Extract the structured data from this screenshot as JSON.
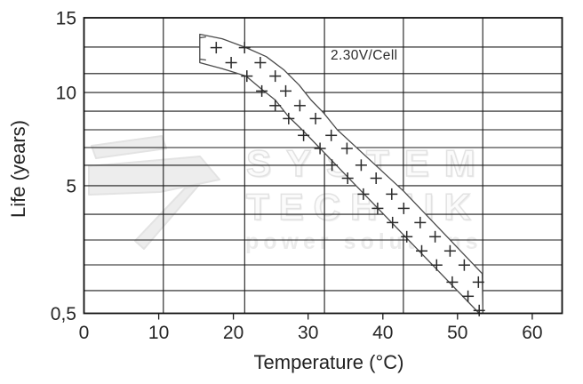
{
  "watermark": {
    "line1": "SYSTEM",
    "line2": "TECHNIK",
    "tagline": "power solutions",
    "color": "#ececec"
  },
  "annotation": {
    "label": "2.30V/Cell"
  },
  "colors": {
    "grid": "#1c1c1c",
    "border": "#111111",
    "band_stroke": "#4a4a4a",
    "band_fill": "#ffffff",
    "marker": "#2a2a2a",
    "text": "#262626"
  },
  "chart_data": {
    "type": "area",
    "subtype": "band-between-curves",
    "title": "",
    "xlabel": "Temperature (°C)",
    "ylabel": "Life (years)",
    "legend": "none",
    "grid": true,
    "x_range": [
      0,
      64
    ],
    "x_ticks": [
      {
        "label": "0",
        "value": 0
      },
      {
        "label": "10",
        "value": 10
      },
      {
        "label": "20",
        "value": 20
      },
      {
        "label": "30",
        "value": 30
      },
      {
        "label": "40",
        "value": 40
      },
      {
        "label": "50",
        "value": 50
      },
      {
        "label": "60",
        "value": 60
      }
    ],
    "x_gridline_pos": [
      0.0,
      0.166,
      0.336,
      0.503,
      0.668,
      0.834,
      1.0
    ],
    "y_scale": "quasi-log",
    "y_ticks": [
      {
        "label": "15",
        "value": 15,
        "pos": 0.0
      },
      {
        "label": "10",
        "value": 10,
        "pos": 0.253
      },
      {
        "label": "5",
        "value": 5,
        "pos": 0.568
      },
      {
        "label": "0,5",
        "value": 0.5,
        "pos": 1.0
      }
    ],
    "y_gridline_pos": [
      0.0,
      0.099,
      0.189,
      0.253,
      0.316,
      0.379,
      0.439,
      0.499,
      0.568,
      0.665,
      0.752,
      0.836,
      0.923,
      1.0
    ],
    "series": [
      {
        "name": "service-life-band-upper",
        "points": [
          [
            15.5,
            13.9
          ],
          [
            18.5,
            13.6
          ],
          [
            21.7,
            13.0
          ],
          [
            24.4,
            12.4
          ],
          [
            26.8,
            11.5
          ],
          [
            28.8,
            10.5
          ],
          [
            30.4,
            9.6
          ],
          [
            32.1,
            8.9
          ],
          [
            33.9,
            8.0
          ],
          [
            42.8,
            4.8
          ],
          [
            53.3,
            1.9
          ],
          [
            53.4,
            0.5
          ]
        ]
      },
      {
        "name": "service-life-band-lower",
        "points": [
          [
            15.5,
            12.0
          ],
          [
            18.5,
            11.6
          ],
          [
            21.7,
            11.1
          ],
          [
            23.6,
            10.3
          ],
          [
            25.6,
            9.6
          ],
          [
            27.4,
            8.7
          ],
          [
            29.2,
            8.0
          ],
          [
            52.9,
            0.5
          ]
        ]
      }
    ],
    "markers": [
      [
        17.7,
        13.0
      ],
      [
        21.5,
        13.0
      ],
      [
        19.7,
        12.0
      ],
      [
        23.6,
        12.0
      ],
      [
        21.8,
        11.1
      ],
      [
        25.6,
        11.1
      ],
      [
        23.8,
        10.1
      ],
      [
        27.0,
        10.1
      ],
      [
        25.6,
        9.3
      ],
      [
        28.9,
        9.3
      ],
      [
        27.4,
        8.6
      ],
      [
        31.0,
        8.6
      ],
      [
        29.4,
        7.7
      ],
      [
        33.1,
        7.7
      ],
      [
        31.6,
        7.0
      ],
      [
        35.2,
        7.0
      ],
      [
        33.2,
        6.1
      ],
      [
        37.1,
        6.1
      ],
      [
        35.3,
        5.4
      ],
      [
        39.1,
        5.4
      ],
      [
        37.4,
        4.7
      ],
      [
        41.2,
        4.7
      ],
      [
        39.3,
        4.2
      ],
      [
        42.8,
        4.2
      ],
      [
        41.3,
        3.7
      ],
      [
        45.0,
        3.7
      ],
      [
        43.2,
        3.2
      ],
      [
        47.0,
        3.2
      ],
      [
        45.2,
        2.7
      ],
      [
        49.0,
        2.7
      ],
      [
        47.2,
        2.2
      ],
      [
        50.9,
        2.2
      ],
      [
        49.3,
        1.6
      ],
      [
        52.8,
        1.6
      ],
      [
        51.4,
        1.1
      ],
      [
        52.9,
        0.6
      ]
    ]
  }
}
